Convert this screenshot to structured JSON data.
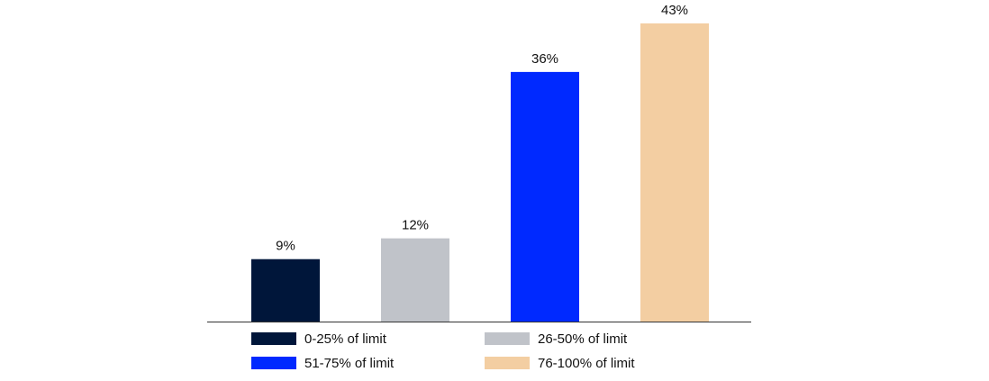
{
  "chart_data": {
    "type": "bar",
    "categories": [
      "0-25% of limit",
      "26-50% of limit",
      "51-75% of limit",
      "76-100% of limit"
    ],
    "values": [
      9,
      12,
      36,
      43
    ],
    "value_labels": [
      "9%",
      "12%",
      "36%",
      "43%"
    ],
    "colors": [
      "#00163a",
      "#c0c3c9",
      "#0029ff",
      "#f3cea2"
    ]
  }
}
